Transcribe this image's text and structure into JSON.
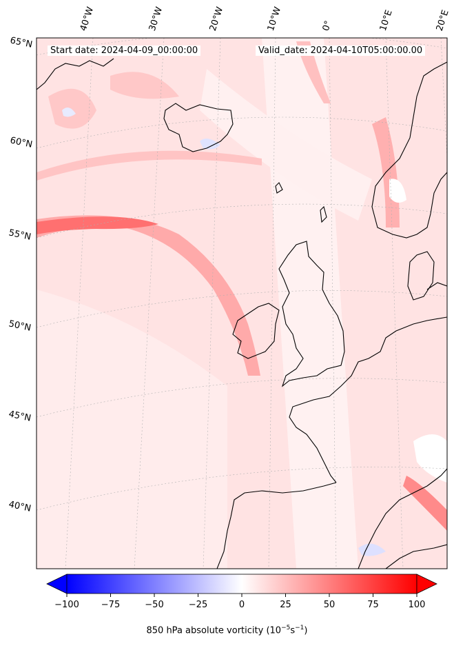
{
  "title_left": "Start date: 2024-04-09_00:00:00",
  "title_right": "Valid_date: 2024-04-10T05:00:00.00",
  "longitude_labels": [
    "40°W",
    "30°W",
    "20°W",
    "10°W",
    "0°",
    "10°E",
    "20°E"
  ],
  "latitude_labels": [
    "65°N",
    "60°N",
    "55°N",
    "50°N",
    "45°N",
    "40°N"
  ],
  "colorbar": {
    "label": "850 hPa absolute vorticity (10",
    "label_exp1": "−5",
    "label_mid": "s",
    "label_exp2": "−1",
    "label_end": ")",
    "ticks": [
      "−100",
      "−75",
      "−50",
      "−25",
      "0",
      "25",
      "50",
      "75",
      "100"
    ],
    "min": -100,
    "max": 100,
    "cmap": "bwr"
  },
  "colors": {
    "negative": "#0000ff",
    "zero": "#ffffff",
    "positive": "#ff0000",
    "coast": "#000000",
    "gridline": "#b0b0b0"
  }
}
